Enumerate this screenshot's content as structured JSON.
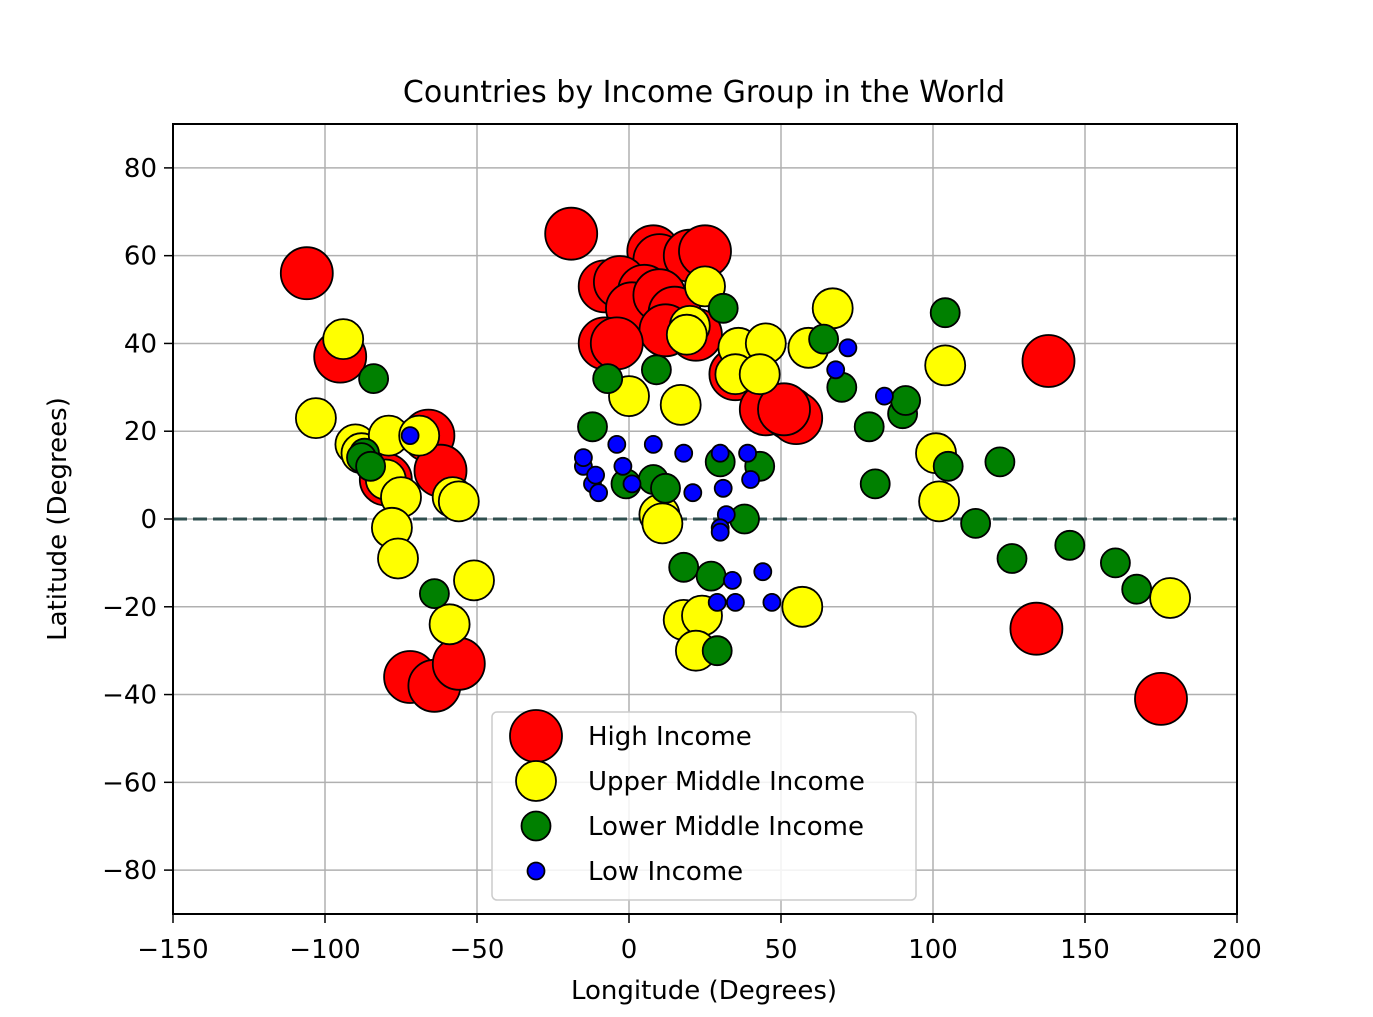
{
  "chart_data": {
    "type": "scatter",
    "title": "Countries by Income Group in the World",
    "xlabel": "Longitude (Degrees)",
    "ylabel": "Latitude (Degrees)",
    "xlim": [
      -150,
      200
    ],
    "ylim": [
      -90,
      90
    ],
    "xticks": [
      -150,
      -100,
      -50,
      0,
      50,
      100,
      150,
      200
    ],
    "yticks": [
      -80,
      -60,
      -40,
      -20,
      0,
      20,
      40,
      60,
      80
    ],
    "xtick_labels": [
      "−150",
      "−100",
      "−50",
      "0",
      "50",
      "100",
      "150",
      "200"
    ],
    "ytick_labels": [
      "−80",
      "−60",
      "−40",
      "−20",
      "0",
      "20",
      "40",
      "60",
      "80"
    ],
    "grid": true,
    "reference_line": {
      "y": 0,
      "style": "dashed",
      "color": "#2f4f4f"
    },
    "legend_position": "lower-center",
    "series": [
      {
        "name": "High Income",
        "color": "#ff0000",
        "marker_size": 4,
        "points": [
          [
            -106,
            56
          ],
          [
            -95,
            37
          ],
          [
            -66,
            19
          ],
          [
            -62,
            11
          ],
          [
            -80,
            9
          ],
          [
            -72,
            -36
          ],
          [
            -64,
            -38
          ],
          [
            -56,
            -33
          ],
          [
            -19,
            65
          ],
          [
            8,
            61
          ],
          [
            10,
            59
          ],
          [
            20,
            60
          ],
          [
            25,
            61
          ],
          [
            -8,
            53
          ],
          [
            -3,
            54
          ],
          [
            5,
            52
          ],
          [
            1,
            48
          ],
          [
            10,
            51
          ],
          [
            15,
            47
          ],
          [
            12,
            43
          ],
          [
            -8,
            40
          ],
          [
            -4,
            40
          ],
          [
            22,
            42
          ],
          [
            35,
            33
          ],
          [
            45,
            25
          ],
          [
            53,
            24
          ],
          [
            55,
            23
          ],
          [
            51,
            25
          ],
          [
            138,
            36
          ],
          [
            134,
            -25
          ],
          [
            175,
            -41
          ]
        ]
      },
      {
        "name": "Upper Middle Income",
        "color": "#ffff00",
        "marker_size": 3,
        "points": [
          [
            -103,
            23
          ],
          [
            -94,
            41
          ],
          [
            -90,
            17
          ],
          [
            -88,
            15
          ],
          [
            -80,
            9
          ],
          [
            -79,
            19
          ],
          [
            -75,
            5
          ],
          [
            -78,
            -2
          ],
          [
            -76,
            -9
          ],
          [
            -69,
            19
          ],
          [
            -58,
            5
          ],
          [
            -56,
            4
          ],
          [
            -51,
            -14
          ],
          [
            -59,
            -24
          ],
          [
            0,
            28
          ],
          [
            10,
            1
          ],
          [
            11,
            -1
          ],
          [
            20,
            44
          ],
          [
            19,
            42
          ],
          [
            17,
            26
          ],
          [
            25,
            53
          ],
          [
            18,
            -23
          ],
          [
            24,
            -22
          ],
          [
            22,
            -30
          ],
          [
            36,
            39
          ],
          [
            35,
            33
          ],
          [
            45,
            40
          ],
          [
            43,
            33
          ],
          [
            59,
            39
          ],
          [
            67,
            48
          ],
          [
            57,
            -20
          ],
          [
            104,
            35
          ],
          [
            101,
            15
          ],
          [
            102,
            4
          ],
          [
            178,
            -18
          ]
        ]
      },
      {
        "name": "Lower Middle Income",
        "color": "#008000",
        "marker_size": 2,
        "points": [
          [
            -84,
            32
          ],
          [
            -87,
            15
          ],
          [
            -88,
            14
          ],
          [
            -85,
            12
          ],
          [
            -64,
            -17
          ],
          [
            -12,
            21
          ],
          [
            -7,
            32
          ],
          [
            9,
            34
          ],
          [
            -1,
            8
          ],
          [
            8,
            9
          ],
          [
            12,
            7
          ],
          [
            18,
            -11
          ],
          [
            27,
            -13
          ],
          [
            29,
            -30
          ],
          [
            30,
            13
          ],
          [
            43,
            12
          ],
          [
            38,
            0
          ],
          [
            31,
            48
          ],
          [
            64,
            41
          ],
          [
            70,
            30
          ],
          [
            79,
            21
          ],
          [
            81,
            8
          ],
          [
            90,
            24
          ],
          [
            91,
            27
          ],
          [
            104,
            47
          ],
          [
            105,
            12
          ],
          [
            114,
            -1
          ],
          [
            122,
            13
          ],
          [
            126,
            -9
          ],
          [
            145,
            -6
          ],
          [
            160,
            -10
          ],
          [
            167,
            -16
          ]
        ]
      },
      {
        "name": "Low Income",
        "color": "#0000ff",
        "marker_size": 1,
        "points": [
          [
            -72,
            19
          ],
          [
            -15,
            12
          ],
          [
            -15,
            14
          ],
          [
            -12,
            8
          ],
          [
            -11,
            10
          ],
          [
            -10,
            6
          ],
          [
            -4,
            17
          ],
          [
            -2,
            12
          ],
          [
            1,
            8
          ],
          [
            8,
            17
          ],
          [
            18,
            15
          ],
          [
            21,
            6
          ],
          [
            30,
            15
          ],
          [
            31,
            7
          ],
          [
            32,
            1
          ],
          [
            30,
            -2
          ],
          [
            30,
            -3
          ],
          [
            34,
            -14
          ],
          [
            29,
            -19
          ],
          [
            35,
            -19
          ],
          [
            40,
            9
          ],
          [
            39,
            15
          ],
          [
            44,
            -12
          ],
          [
            47,
            -19
          ],
          [
            68,
            34
          ],
          [
            72,
            39
          ],
          [
            84,
            28
          ]
        ]
      }
    ]
  }
}
